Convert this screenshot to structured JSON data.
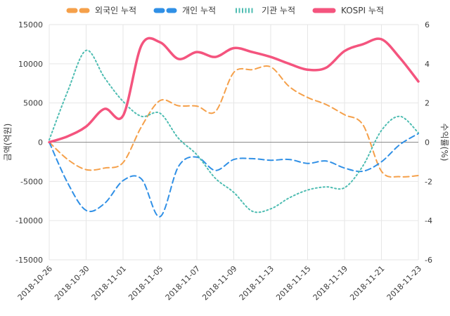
{
  "chart_data": {
    "type": "line",
    "title": "",
    "x": [
      "2018-10-26",
      "2018-10-29",
      "2018-10-30",
      "2018-10-31",
      "2018-11-01",
      "2018-11-02",
      "2018-11-05",
      "2018-11-06",
      "2018-11-07",
      "2018-11-08",
      "2018-11-09",
      "2018-11-12",
      "2018-11-13",
      "2018-11-14",
      "2018-11-15",
      "2018-11-16",
      "2018-11-19",
      "2018-11-20",
      "2018-11-21",
      "2018-11-22",
      "2018-11-23"
    ],
    "x_tick_indices": [
      0,
      2,
      4,
      6,
      8,
      10,
      12,
      14,
      16,
      18,
      20
    ],
    "x_tick_labels": [
      "2018-10-26",
      "2018-10-30",
      "2018-11-01",
      "2018-11-05",
      "2018-11-07",
      "2018-11-09",
      "2018-11-13",
      "2018-11-15",
      "2018-11-19",
      "2018-11-21",
      "2018-11-23"
    ],
    "grid": true,
    "legend_position": "top",
    "left_axis": {
      "title": "금액(억원)",
      "min": -15000,
      "max": 15000,
      "ticks": [
        15000,
        10000,
        5000,
        0,
        -5000,
        -10000,
        -15000
      ]
    },
    "right_axis": {
      "title": "수익률(%)",
      "min": -6,
      "max": 6,
      "ticks": [
        6,
        4,
        2,
        0,
        -2,
        -4,
        -6
      ]
    },
    "zero_line_color": "#8a8a8a",
    "grid_color": "#e6e6e6",
    "tick_text_color": "#3b3b3b",
    "series": [
      {
        "key": "foreign",
        "name": "외국인 누적",
        "axis": "left",
        "color": "#f5a04a",
        "line_style": "dashed",
        "values": [
          0,
          -2200,
          -3500,
          -3300,
          -2600,
          2000,
          5300,
          4650,
          4600,
          3900,
          8900,
          9250,
          9600,
          7100,
          5700,
          4800,
          3500,
          2200,
          -3700,
          -4400,
          -4250
        ]
      },
      {
        "key": "individual",
        "name": "개인 누적",
        "axis": "left",
        "color": "#3090e6",
        "line_style": "dashed",
        "values": [
          0,
          -5200,
          -8700,
          -7800,
          -4900,
          -4700,
          -9500,
          -3100,
          -1900,
          -3600,
          -2200,
          -2100,
          -2300,
          -2200,
          -2700,
          -2400,
          -3300,
          -3700,
          -2500,
          -300,
          1100
        ]
      },
      {
        "key": "institution",
        "name": "기관 누적",
        "axis": "left",
        "color": "#4fbdb2",
        "line_style": "dotted",
        "values": [
          300,
          6500,
          11700,
          8200,
          5200,
          3300,
          3700,
          500,
          -1600,
          -4600,
          -6400,
          -8800,
          -8500,
          -7100,
          -6100,
          -5700,
          -5800,
          -3000,
          1500,
          3300,
          1200
        ]
      },
      {
        "key": "kospi",
        "name": "KOSPI 누적",
        "axis": "right",
        "color": "#f4547e",
        "line_style": "solid",
        "values": [
          0,
          0.3,
          0.8,
          1.7,
          1.35,
          4.95,
          5.1,
          4.25,
          4.6,
          4.35,
          4.8,
          4.6,
          4.35,
          4.0,
          3.7,
          3.8,
          4.65,
          5.0,
          5.25,
          4.3,
          3.1
        ]
      }
    ]
  }
}
